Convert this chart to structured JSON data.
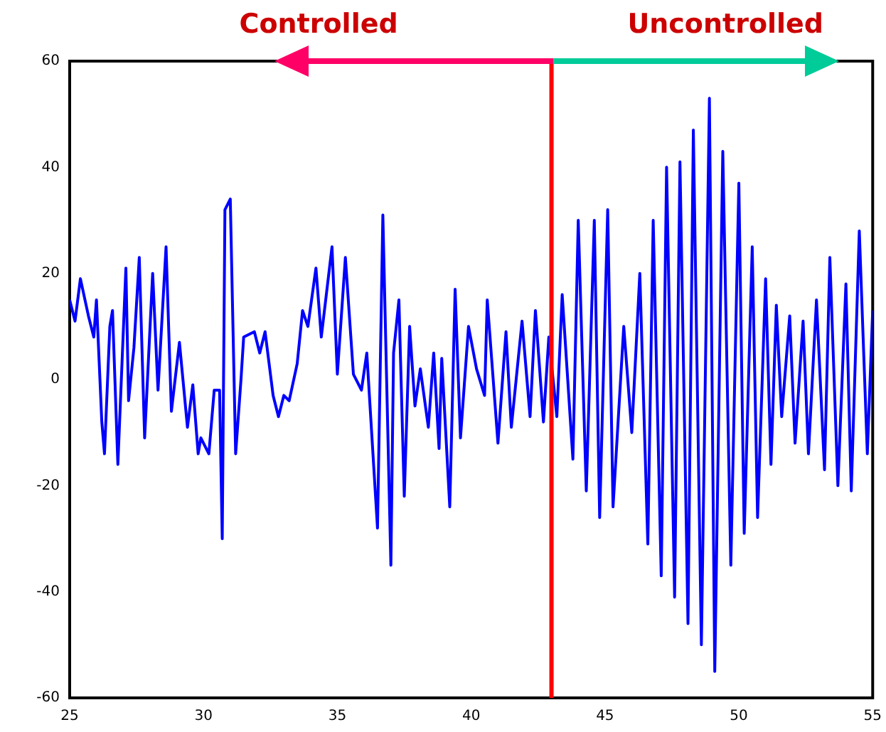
{
  "chart_data": {
    "type": "line",
    "annotations": [
      "Controlled",
      "Uncontrolled"
    ],
    "xlim": [
      25,
      55
    ],
    "xticks": [
      25,
      30,
      35,
      40,
      45,
      50,
      55
    ],
    "ylim": [
      -60,
      60
    ],
    "yticks": [
      -60,
      -40,
      -20,
      0,
      20,
      40,
      60
    ],
    "grid": false,
    "legend": false,
    "ref_lines": [
      {
        "axis": "x",
        "value": 43,
        "color": "#ff0000"
      }
    ],
    "series": [
      {
        "color": "#0000ff",
        "x": [
          25.0,
          25.2,
          25.4,
          25.7,
          25.9,
          26.0,
          26.2,
          26.3,
          26.5,
          26.6,
          26.8,
          27.1,
          27.2,
          27.4,
          27.6,
          27.8,
          28.1,
          28.3,
          28.6,
          28.8,
          29.1,
          29.4,
          29.6,
          29.8,
          29.9,
          30.2,
          30.4,
          30.6,
          30.7,
          30.8,
          31.0,
          31.2,
          31.4,
          31.5,
          31.9,
          32.1,
          32.3,
          32.6,
          32.8,
          33.0,
          33.2,
          33.5,
          33.7,
          33.9,
          34.2,
          34.4,
          34.8,
          35.0,
          35.3,
          35.6,
          35.9,
          36.1,
          36.5,
          36.7,
          37.0,
          37.1,
          37.3,
          37.5,
          37.7,
          37.9,
          38.1,
          38.4,
          38.6,
          38.8,
          38.9,
          39.2,
          39.4,
          39.6,
          39.9,
          40.2,
          40.5,
          40.6,
          41.0,
          41.3,
          41.5,
          41.9,
          42.2,
          42.4,
          42.7,
          42.9,
          43.2,
          43.4,
          43.8,
          44.0,
          44.3,
          44.6,
          44.8,
          45.1,
          45.3,
          45.7,
          46.0,
          46.3,
          46.6,
          46.8,
          47.1,
          47.3,
          47.6,
          47.8,
          48.1,
          48.3,
          48.6,
          48.9,
          49.1,
          49.4,
          49.7,
          50.0,
          50.2,
          50.5,
          50.7,
          51.0,
          51.2,
          51.4,
          51.6,
          51.9,
          52.1,
          52.4,
          52.6,
          52.9,
          53.2,
          53.4,
          53.7,
          54.0,
          54.2,
          54.5,
          54.8,
          55.0
        ],
        "values": [
          15,
          11,
          19,
          12,
          8,
          15,
          -8,
          -14,
          10,
          13,
          -16,
          21,
          -4,
          6,
          23,
          -11,
          20,
          -2,
          25,
          -6,
          7,
          -9,
          -1,
          -14,
          -11,
          -14,
          -2,
          -2,
          -30,
          32,
          34,
          -14,
          0,
          8,
          9,
          5,
          9,
          -3,
          -7,
          -3,
          -4,
          3,
          13,
          10,
          21,
          8,
          25,
          1,
          23,
          1,
          -2,
          5,
          -28,
          31,
          -35,
          5,
          15,
          -22,
          10,
          -5,
          2,
          -9,
          5,
          -13,
          4,
          -24,
          17,
          -11,
          10,
          2,
          -3,
          15,
          -12,
          9,
          -9,
          11,
          -7,
          13,
          -8,
          8,
          -7,
          16,
          -15,
          30,
          -21,
          30,
          -26,
          32,
          -24,
          10,
          -10,
          20,
          -31,
          30,
          -37,
          40,
          -41,
          41,
          -46,
          47,
          -50,
          53,
          -55,
          43,
          -35,
          37,
          -29,
          25,
          -26,
          19,
          -16,
          14,
          -7,
          12,
          -12,
          11,
          -14,
          15,
          -17,
          23,
          -20,
          18,
          -21,
          28,
          -14,
          13
        ]
      }
    ]
  }
}
